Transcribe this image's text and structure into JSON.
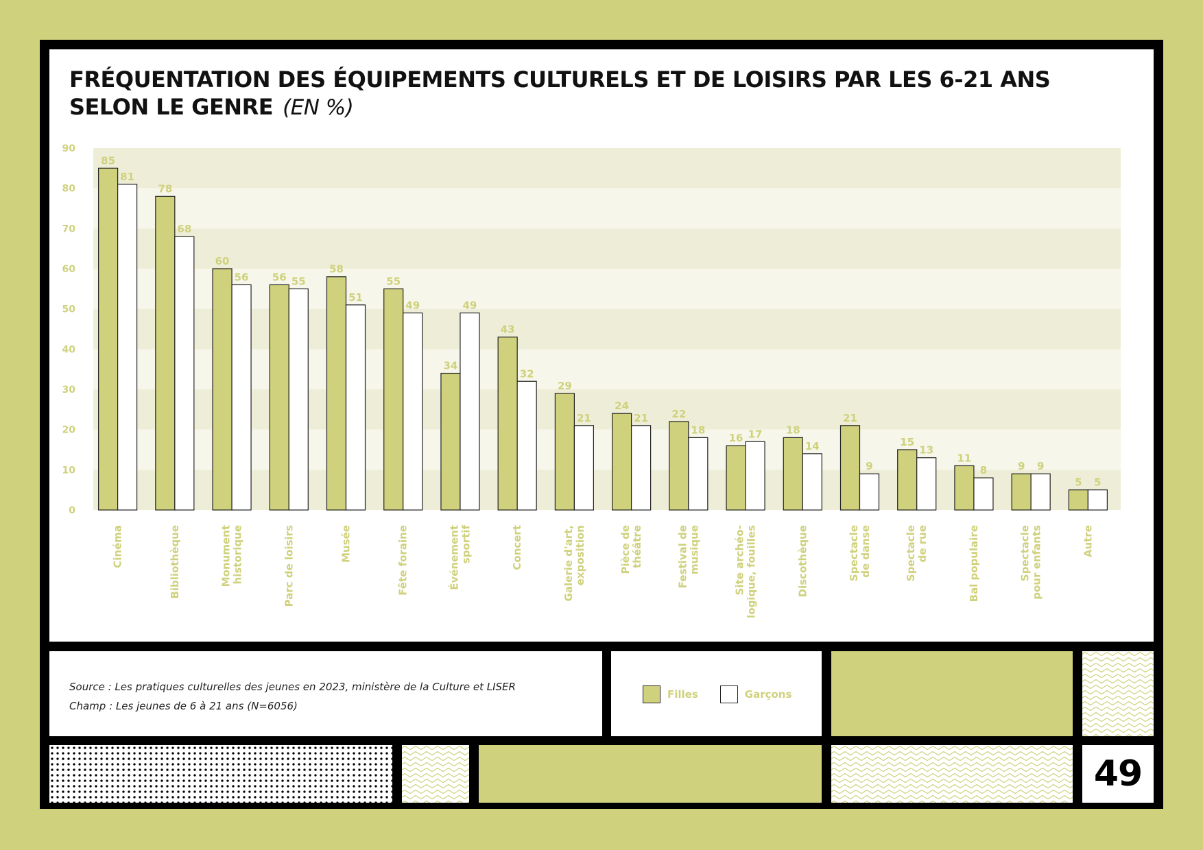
{
  "title_line1": "FRÉQUENTATION DES ÉQUIPEMENTS CULTURELS ET DE LOISIRS PAR LES 6-21 ANS",
  "title_line2": "SELON LE GENRE",
  "title_unit": "(EN %)",
  "source": "Source : Les pratiques culturelles des jeunes en 2023, ministère de la Culture et LISER",
  "champ": "Champ : Les jeunes de 6 à 21 ans (N=6056)",
  "page_number": "49",
  "colors": {
    "accent": "#cfd17c",
    "band_dark": "#eeeed8",
    "band_light": "#f6f6ea",
    "filles": "#cfd17c",
    "garcons": "#ffffff"
  },
  "chart_data": {
    "type": "bar",
    "categories": [
      [
        "Cinéma"
      ],
      [
        "Bibliothèque"
      ],
      [
        "Monument",
        "historique"
      ],
      [
        "Parc de loisirs"
      ],
      [
        "Musée"
      ],
      [
        "Fête foraine"
      ],
      [
        "Événement",
        "sportif"
      ],
      [
        "Concert"
      ],
      [
        "Galerie d'art,",
        "exposition"
      ],
      [
        "Pièce de",
        "théâtre"
      ],
      [
        "Festival de",
        "musique"
      ],
      [
        "Site archéo-",
        "logique, fouilles"
      ],
      [
        "Discothèque"
      ],
      [
        "Spectacle",
        "de danse"
      ],
      [
        "Spectacle",
        "de rue"
      ],
      [
        "Bal populaire"
      ],
      [
        "Spectacle",
        "pour enfants"
      ],
      [
        "Autre"
      ]
    ],
    "series": [
      {
        "name": "Filles",
        "values": [
          85,
          78,
          60,
          56,
          58,
          55,
          34,
          43,
          29,
          24,
          22,
          16,
          18,
          21,
          15,
          11,
          9,
          5
        ]
      },
      {
        "name": "Garçons",
        "values": [
          81,
          68,
          56,
          55,
          51,
          49,
          49,
          32,
          21,
          21,
          18,
          17,
          14,
          9,
          13,
          8,
          9,
          5
        ]
      }
    ],
    "yticks": [
      0,
      10,
      20,
      30,
      40,
      50,
      60,
      70,
      80,
      90
    ],
    "ylim": [
      0,
      90
    ],
    "xlabel": "",
    "ylabel": "",
    "legend_position": "bottom",
    "grid": "alternating horizontal bands"
  }
}
